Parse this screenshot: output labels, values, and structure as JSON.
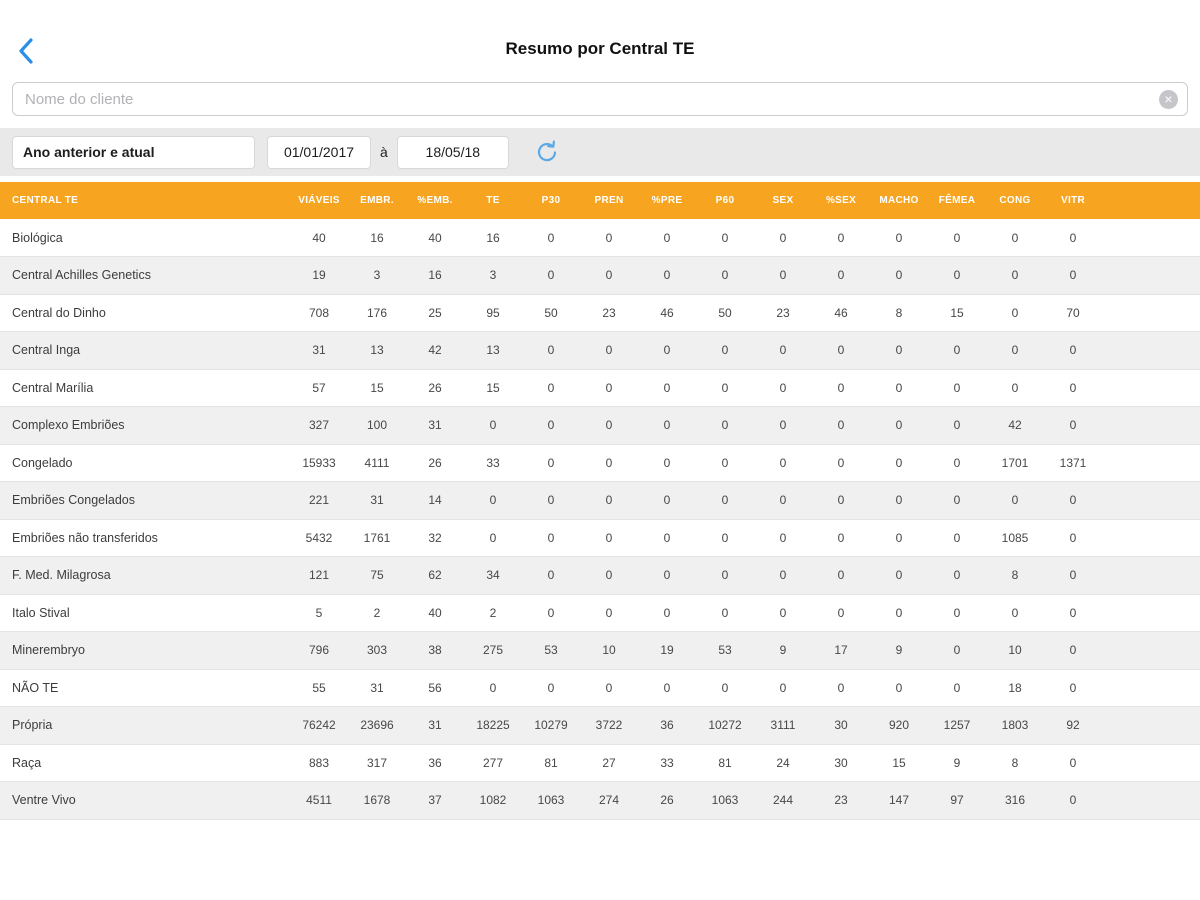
{
  "header": {
    "title": "Resumo por Central TE"
  },
  "search": {
    "placeholder": "Nome do cliente"
  },
  "filters": {
    "period_select_value": "Ano anterior e atual",
    "date_from": "01/01/2017",
    "range_separator": "à",
    "date_to": "18/05/18"
  },
  "icons": {
    "back": "chevron-left",
    "clear_search": "circle-x",
    "refresh": "circular-arrow"
  },
  "colors": {
    "table_header_bg": "#F7A521",
    "accent_blue": "#2B8FE8",
    "refresh_blue": "#5AA9E6",
    "row_alt_bg": "#F0F0F0"
  },
  "chart_data": {
    "type": "table",
    "columns": [
      "CENTRAL TE",
      "VIÁVEIS",
      "EMBR.",
      "%EMB.",
      "TE",
      "P30",
      "PREN",
      "%PRE",
      "P60",
      "SEX",
      "%SEX",
      "MACHO",
      "FÊMEA",
      "CONG",
      "VITR"
    ],
    "rows": [
      [
        "Biológica",
        40,
        16,
        40,
        16,
        0,
        0,
        0,
        0,
        0,
        0,
        0,
        0,
        0,
        0
      ],
      [
        "Central Achilles Genetics",
        19,
        3,
        16,
        3,
        0,
        0,
        0,
        0,
        0,
        0,
        0,
        0,
        0,
        0
      ],
      [
        "Central do Dinho",
        708,
        176,
        25,
        95,
        50,
        23,
        46,
        50,
        23,
        46,
        8,
        15,
        0,
        70
      ],
      [
        "Central Inga",
        31,
        13,
        42,
        13,
        0,
        0,
        0,
        0,
        0,
        0,
        0,
        0,
        0,
        0
      ],
      [
        "Central Marília",
        57,
        15,
        26,
        15,
        0,
        0,
        0,
        0,
        0,
        0,
        0,
        0,
        0,
        0
      ],
      [
        "Complexo Embriões",
        327,
        100,
        31,
        0,
        0,
        0,
        0,
        0,
        0,
        0,
        0,
        0,
        42,
        0
      ],
      [
        "Congelado",
        15933,
        4111,
        26,
        33,
        0,
        0,
        0,
        0,
        0,
        0,
        0,
        0,
        1701,
        1371
      ],
      [
        "Embriões Congelados",
        221,
        31,
        14,
        0,
        0,
        0,
        0,
        0,
        0,
        0,
        0,
        0,
        0,
        0
      ],
      [
        "Embriões não transferidos",
        5432,
        1761,
        32,
        0,
        0,
        0,
        0,
        0,
        0,
        0,
        0,
        0,
        1085,
        0
      ],
      [
        "F. Med. Milagrosa",
        121,
        75,
        62,
        34,
        0,
        0,
        0,
        0,
        0,
        0,
        0,
        0,
        8,
        0
      ],
      [
        "Italo Stival",
        5,
        2,
        40,
        2,
        0,
        0,
        0,
        0,
        0,
        0,
        0,
        0,
        0,
        0
      ],
      [
        "Minerembryo",
        796,
        303,
        38,
        275,
        53,
        10,
        19,
        53,
        9,
        17,
        9,
        0,
        10,
        0
      ],
      [
        "NÃO TE",
        55,
        31,
        56,
        0,
        0,
        0,
        0,
        0,
        0,
        0,
        0,
        0,
        18,
        0
      ],
      [
        "Própria",
        76242,
        23696,
        31,
        18225,
        10279,
        3722,
        36,
        10272,
        3111,
        30,
        920,
        1257,
        1803,
        92
      ],
      [
        "Raça",
        883,
        317,
        36,
        277,
        81,
        27,
        33,
        81,
        24,
        30,
        15,
        9,
        8,
        0
      ],
      [
        "Ventre Vivo",
        4511,
        1678,
        37,
        1082,
        1063,
        274,
        26,
        1063,
        244,
        23,
        147,
        97,
        316,
        0
      ]
    ]
  }
}
